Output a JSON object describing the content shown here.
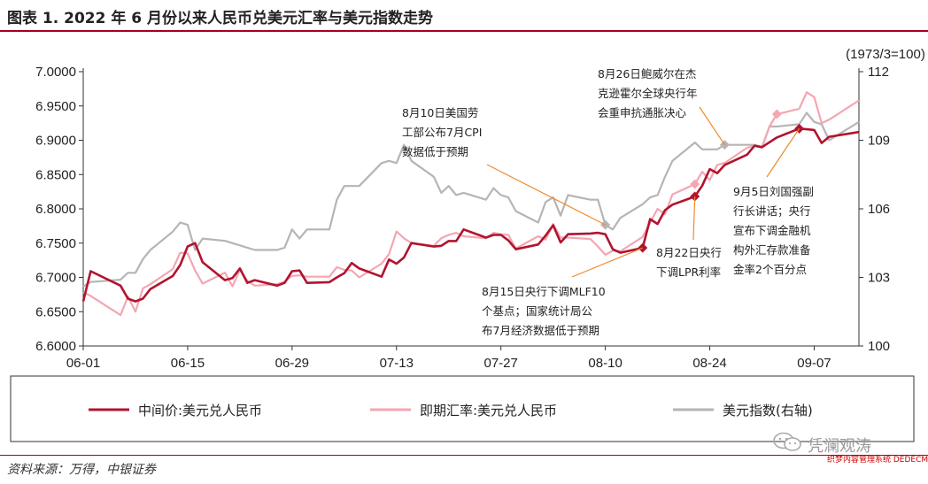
{
  "title": "图表 1. 2022 年 6 月份以来人民币兑美元汇率与美元指数走势",
  "source": "资料来源：万得，中银证券",
  "watermark": {
    "text": "凭澜观涛",
    "url": "织梦内容管理系统 DEDECMS.COM"
  },
  "colors": {
    "accent": "#a8001f",
    "series_mid": "#b0142f",
    "series_spot": "#f4a6b2",
    "series_dxy": "#b5b5b5"
  },
  "chart_data": {
    "type": "line",
    "x_ticks": [
      "06-01",
      "06-15",
      "06-29",
      "07-13",
      "07-27",
      "08-10",
      "08-24",
      "09-07"
    ],
    "y_left": {
      "ticks": [
        "6.6000",
        "6.6500",
        "6.7000",
        "6.7500",
        "6.8000",
        "6.8500",
        "6.9000",
        "6.9500",
        "7.0000"
      ],
      "range": [
        6.6,
        7.0
      ]
    },
    "y_right": {
      "unit_label": "(1973/3=100)",
      "ticks": [
        "100",
        "103",
        "106",
        "109",
        "112"
      ],
      "range": [
        100,
        112
      ]
    },
    "grid": false,
    "legend": {
      "position": "bottom",
      "items": [
        "中间价:美元兑人民币",
        "即期汇率:美元兑人民币",
        "美元指数(右轴)"
      ]
    },
    "series": [
      {
        "name": "中间价:美元兑人民币",
        "axis": "left",
        "color": "#b0142f",
        "points": [
          [
            "06-01",
            6.665
          ],
          [
            "06-02",
            6.709
          ],
          [
            "06-06",
            6.688
          ],
          [
            "06-07",
            6.669
          ],
          [
            "06-08",
            6.665
          ],
          [
            "06-09",
            6.669
          ],
          [
            "06-10",
            6.683
          ],
          [
            "06-13",
            6.702
          ],
          [
            "06-14",
            6.718
          ],
          [
            "06-15",
            6.745
          ],
          [
            "06-16",
            6.75
          ],
          [
            "06-17",
            6.722
          ],
          [
            "06-20",
            6.696
          ],
          [
            "06-21",
            6.699
          ],
          [
            "06-22",
            6.713
          ],
          [
            "06-23",
            6.692
          ],
          [
            "06-24",
            6.696
          ],
          [
            "06-27",
            6.688
          ],
          [
            "06-28",
            6.692
          ],
          [
            "06-29",
            6.709
          ],
          [
            "06-30",
            6.71
          ],
          [
            "07-01",
            6.692
          ],
          [
            "07-04",
            6.693
          ],
          [
            "07-05",
            6.7
          ],
          [
            "07-06",
            6.706
          ],
          [
            "07-07",
            6.721
          ],
          [
            "07-08",
            6.713
          ],
          [
            "07-11",
            6.701
          ],
          [
            "07-12",
            6.726
          ],
          [
            "07-13",
            6.72
          ],
          [
            "07-14",
            6.729
          ],
          [
            "07-15",
            6.75
          ],
          [
            "07-18",
            6.745
          ],
          [
            "07-19",
            6.746
          ],
          [
            "07-20",
            6.753
          ],
          [
            "07-21",
            6.753
          ],
          [
            "07-22",
            6.77
          ],
          [
            "07-25",
            6.758
          ],
          [
            "07-26",
            6.762
          ],
          [
            "07-27",
            6.762
          ],
          [
            "07-28",
            6.754
          ],
          [
            "07-29",
            6.741
          ],
          [
            "08-01",
            6.748
          ],
          [
            "08-02",
            6.761
          ],
          [
            "08-03",
            6.776
          ],
          [
            "08-04",
            6.751
          ],
          [
            "08-05",
            6.763
          ],
          [
            "08-08",
            6.764
          ],
          [
            "08-09",
            6.765
          ],
          [
            "08-10",
            6.763
          ],
          [
            "08-11",
            6.741
          ],
          [
            "08-12",
            6.736
          ],
          [
            "08-15",
            6.743
          ],
          [
            "08-16",
            6.785
          ],
          [
            "08-17",
            6.778
          ],
          [
            "08-18",
            6.798
          ],
          [
            "08-19",
            6.806
          ],
          [
            "08-22",
            6.818
          ],
          [
            "08-23",
            6.834
          ],
          [
            "08-24",
            6.858
          ],
          [
            "08-25",
            6.852
          ],
          [
            "08-26",
            6.864
          ],
          [
            "08-29",
            6.879
          ],
          [
            "08-30",
            6.892
          ],
          [
            "08-31",
            6.89
          ],
          [
            "09-01",
            6.897
          ],
          [
            "09-02",
            6.904
          ],
          [
            "09-05",
            6.917
          ],
          [
            "09-06",
            6.916
          ],
          [
            "09-07",
            6.915
          ],
          [
            "09-08",
            6.896
          ],
          [
            "09-09",
            6.905
          ],
          [
            "09-13",
            6.912
          ]
        ],
        "highlighted": [
          "08-15",
          "08-22",
          "09-05"
        ]
      },
      {
        "name": "即期汇率:美元兑人民币",
        "axis": "left",
        "color": "#f4a6b2",
        "points": [
          [
            "06-01",
            6.678
          ],
          [
            "06-02",
            6.673
          ],
          [
            "06-06",
            6.645
          ],
          [
            "06-07",
            6.672
          ],
          [
            "06-08",
            6.65
          ],
          [
            "06-09",
            6.684
          ],
          [
            "06-10",
            6.69
          ],
          [
            "06-13",
            6.712
          ],
          [
            "06-14",
            6.736
          ],
          [
            "06-15",
            6.735
          ],
          [
            "06-16",
            6.71
          ],
          [
            "06-17",
            6.691
          ],
          [
            "06-20",
            6.707
          ],
          [
            "06-21",
            6.687
          ],
          [
            "06-22",
            6.711
          ],
          [
            "06-23",
            6.695
          ],
          [
            "06-24",
            6.688
          ],
          [
            "06-27",
            6.69
          ],
          [
            "06-28",
            6.694
          ],
          [
            "06-29",
            6.702
          ],
          [
            "06-30",
            6.703
          ],
          [
            "07-01",
            6.701
          ],
          [
            "07-04",
            6.701
          ],
          [
            "07-05",
            6.715
          ],
          [
            "07-06",
            6.711
          ],
          [
            "07-07",
            6.71
          ],
          [
            "07-08",
            6.7
          ],
          [
            "07-11",
            6.72
          ],
          [
            "07-12",
            6.734
          ],
          [
            "07-13",
            6.767
          ],
          [
            "07-14",
            6.757
          ],
          [
            "07-15",
            6.75
          ],
          [
            "07-18",
            6.746
          ],
          [
            "07-19",
            6.757
          ],
          [
            "07-20",
            6.762
          ],
          [
            "07-21",
            6.765
          ],
          [
            "07-22",
            6.76
          ],
          [
            "07-25",
            6.757
          ],
          [
            "07-26",
            6.765
          ],
          [
            "07-27",
            6.763
          ],
          [
            "07-28",
            6.762
          ],
          [
            "07-29",
            6.742
          ],
          [
            "08-01",
            6.76
          ],
          [
            "08-02",
            6.755
          ],
          [
            "08-03",
            6.778
          ],
          [
            "08-04",
            6.758
          ],
          [
            "08-05",
            6.758
          ],
          [
            "08-08",
            6.756
          ],
          [
            "08-09",
            6.745
          ],
          [
            "08-10",
            6.733
          ],
          [
            "08-11",
            6.739
          ],
          [
            "08-12",
            6.738
          ],
          [
            "08-15",
            6.759
          ],
          [
            "08-16",
            6.78
          ],
          [
            "08-17",
            6.8
          ],
          [
            "08-18",
            6.792
          ],
          [
            "08-19",
            6.821
          ],
          [
            "08-22",
            6.836
          ],
          [
            "08-23",
            6.854
          ],
          [
            "08-24",
            6.842
          ],
          [
            "08-25",
            6.864
          ],
          [
            "08-26",
            6.867
          ],
          [
            "08-29",
            6.889
          ],
          [
            "08-30",
            6.892
          ],
          [
            "08-31",
            6.889
          ],
          [
            "09-01",
            6.92
          ],
          [
            "09-02",
            6.938
          ],
          [
            "09-05",
            6.946
          ],
          [
            "09-06",
            6.97
          ],
          [
            "09-07",
            6.963
          ],
          [
            "09-08",
            6.925
          ],
          [
            "09-09",
            6.93
          ],
          [
            "09-13",
            6.958
          ]
        ],
        "highlighted": [
          "08-22",
          "09-02"
        ]
      },
      {
        "name": "美元指数(右轴)",
        "axis": "right",
        "color": "#b5b5b5",
        "points": [
          [
            "06-01",
            102.6
          ],
          [
            "06-02",
            102.8
          ],
          [
            "06-06",
            102.9
          ],
          [
            "06-07",
            103.2
          ],
          [
            "06-08",
            103.2
          ],
          [
            "06-09",
            103.8
          ],
          [
            "06-10",
            104.2
          ],
          [
            "06-13",
            105.0
          ],
          [
            "06-14",
            105.4
          ],
          [
            "06-15",
            105.3
          ],
          [
            "06-16",
            104.2
          ],
          [
            "06-17",
            104.7
          ],
          [
            "06-20",
            104.6
          ],
          [
            "06-21",
            104.5
          ],
          [
            "06-22",
            104.4
          ],
          [
            "06-23",
            104.3
          ],
          [
            "06-24",
            104.2
          ],
          [
            "06-27",
            104.2
          ],
          [
            "06-28",
            104.3
          ],
          [
            "06-29",
            105.1
          ],
          [
            "06-30",
            104.7
          ],
          [
            "07-01",
            105.1
          ],
          [
            "07-04",
            105.1
          ],
          [
            "07-05",
            106.4
          ],
          [
            "07-06",
            107.0
          ],
          [
            "07-07",
            107.0
          ],
          [
            "07-08",
            107.0
          ],
          [
            "07-11",
            108.0
          ],
          [
            "07-12",
            108.1
          ],
          [
            "07-13",
            108.0
          ],
          [
            "07-14",
            108.8
          ],
          [
            "07-15",
            108.1
          ],
          [
            "07-18",
            107.4
          ],
          [
            "07-19",
            106.7
          ],
          [
            "07-20",
            107.0
          ],
          [
            "07-21",
            106.6
          ],
          [
            "07-22",
            106.7
          ],
          [
            "07-25",
            106.4
          ],
          [
            "07-26",
            106.9
          ],
          [
            "07-27",
            106.6
          ],
          [
            "07-28",
            106.5
          ],
          [
            "07-29",
            105.9
          ],
          [
            "08-01",
            105.4
          ],
          [
            "08-02",
            106.3
          ],
          [
            "08-03",
            106.5
          ],
          [
            "08-04",
            105.7
          ],
          [
            "08-05",
            106.6
          ],
          [
            "08-08",
            106.4
          ],
          [
            "08-09",
            106.4
          ],
          [
            "08-10",
            105.3
          ],
          [
            "08-11",
            105.1
          ],
          [
            "08-12",
            105.6
          ],
          [
            "08-15",
            106.2
          ],
          [
            "08-16",
            106.5
          ],
          [
            "08-17",
            106.6
          ],
          [
            "08-18",
            107.4
          ],
          [
            "08-19",
            108.1
          ],
          [
            "08-22",
            108.9
          ],
          [
            "08-23",
            108.6
          ],
          [
            "08-24",
            108.6
          ],
          [
            "08-25",
            108.6
          ],
          [
            "08-26",
            108.8
          ],
          [
            "08-29",
            108.8
          ],
          [
            "08-30",
            108.8
          ],
          [
            "08-31",
            108.7
          ],
          [
            "09-01",
            109.6
          ],
          [
            "09-02",
            109.6
          ],
          [
            "09-05",
            109.7
          ],
          [
            "09-06",
            110.2
          ],
          [
            "09-07",
            109.8
          ],
          [
            "09-08",
            109.7
          ],
          [
            "09-09",
            109.0
          ],
          [
            "09-13",
            109.8
          ]
        ],
        "highlighted": [
          "08-10",
          "08-26"
        ]
      }
    ],
    "annotations": [
      {
        "lines": [
          "8月10日美国劳",
          "工部公布7月CPI",
          "数据低于预期"
        ]
      },
      {
        "lines": [
          "8月26日鲍威尔在杰",
          "克逊霍尔全球央行年",
          "会重申抗通胀决心"
        ]
      },
      {
        "lines": [
          "8月22日央行",
          "下调LPR利率"
        ]
      },
      {
        "lines": [
          "9月5日刘国强副",
          "行长讲话；央行",
          "宣布下调金融机",
          "构外汇存款准备",
          "金率2个百分点"
        ]
      },
      {
        "lines": [
          "8月15日央行下调MLF10",
          "个基点；国家统计局公",
          "布7月经济数据低于预期"
        ]
      }
    ]
  }
}
